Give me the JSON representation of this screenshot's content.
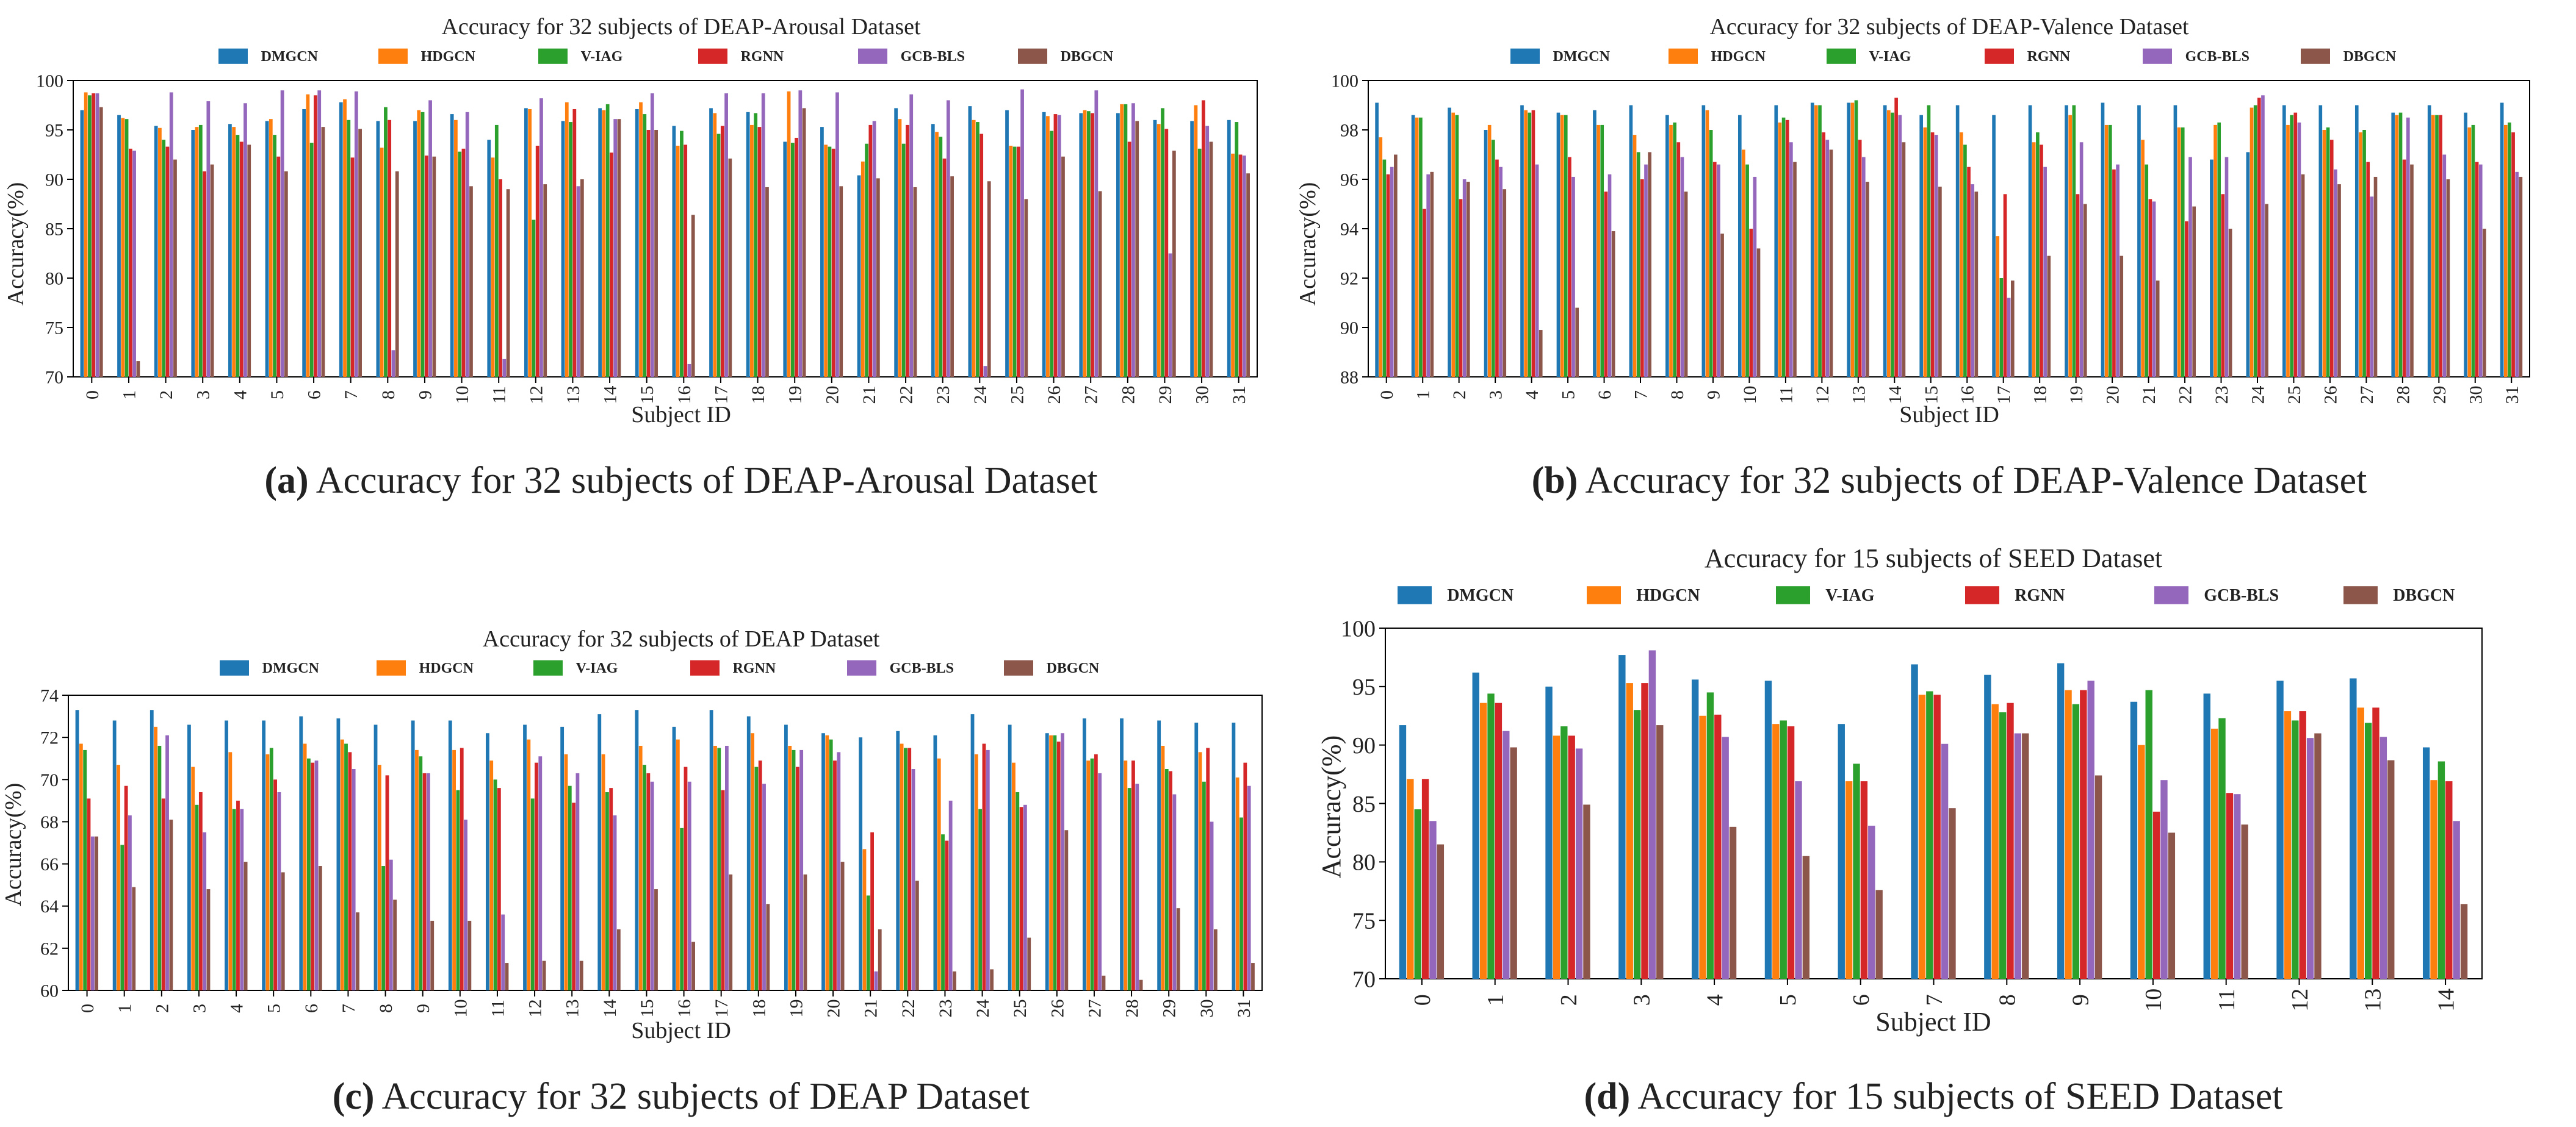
{
  "series_colors": [
    "#1f77b4",
    "#ff7f0e",
    "#2ca02c",
    "#d62728",
    "#9467bd",
    "#8c564b"
  ],
  "chart_data": [
    {
      "id": "a",
      "type": "bar",
      "title": "Accuracy for 32 subjects of DEAP-Arousal Dataset",
      "xlabel": "Subject ID",
      "ylabel": "Accuracy(%)",
      "ylim": [
        70,
        100
      ],
      "yticks": [
        70,
        75,
        80,
        85,
        90,
        95,
        100
      ],
      "categories": [
        "0",
        "1",
        "2",
        "3",
        "4",
        "5",
        "6",
        "7",
        "8",
        "9",
        "10",
        "11",
        "12",
        "13",
        "14",
        "15",
        "16",
        "17",
        "18",
        "19",
        "20",
        "21",
        "22",
        "23",
        "24",
        "25",
        "26",
        "27",
        "28",
        "29",
        "30",
        "31"
      ],
      "caption_label": "(a)",
      "caption_text": "Accuracy for 32 subjects of DEAP-Arousal Dataset",
      "series": [
        {
          "name": "DMGCN",
          "values": [
            97.0,
            96.5,
            95.4,
            95.0,
            95.6,
            95.9,
            97.1,
            97.8,
            95.9,
            95.9,
            96.6,
            94.0,
            97.2,
            95.9,
            97.2,
            97.1,
            95.4,
            97.2,
            96.8,
            93.8,
            95.3,
            90.4,
            97.2,
            95.6,
            97.4,
            97.0,
            96.8,
            96.7,
            96.7,
            96.0,
            95.9,
            96.0
          ]
        },
        {
          "name": "HDGCN",
          "values": [
            98.8,
            96.2,
            95.2,
            95.3,
            95.3,
            96.1,
            98.6,
            98.1,
            93.2,
            97.0,
            96.0,
            92.2,
            97.1,
            97.8,
            97.0,
            97.8,
            93.4,
            96.7,
            95.5,
            98.9,
            93.5,
            91.8,
            96.1,
            94.8,
            96.0,
            93.4,
            96.4,
            97.0,
            97.6,
            95.6,
            97.5,
            92.6
          ]
        },
        {
          "name": "V-IAG",
          "values": [
            98.5,
            96.1,
            94.0,
            95.5,
            94.5,
            94.5,
            93.7,
            96.0,
            97.3,
            96.8,
            92.8,
            95.5,
            85.9,
            95.8,
            97.6,
            96.6,
            94.9,
            94.6,
            96.7,
            93.7,
            93.3,
            93.6,
            93.6,
            94.3,
            95.8,
            93.3,
            94.9,
            96.9,
            97.6,
            97.2,
            93.1,
            95.8
          ]
        },
        {
          "name": "RGNN",
          "values": [
            98.7,
            93.1,
            93.3,
            90.8,
            93.8,
            92.3,
            98.5,
            92.2,
            96.0,
            92.4,
            93.1,
            90.0,
            93.4,
            97.1,
            92.7,
            95.0,
            93.5,
            95.4,
            95.3,
            94.2,
            93.1,
            95.5,
            95.5,
            92.1,
            94.6,
            93.3,
            96.6,
            96.7,
            93.8,
            95.1,
            98.0,
            92.5
          ]
        },
        {
          "name": "GCB-BLS",
          "values": [
            98.7,
            92.9,
            98.8,
            97.9,
            97.7,
            99.0,
            99.0,
            98.9,
            72.7,
            98.0,
            96.8,
            71.8,
            98.2,
            89.3,
            96.1,
            98.7,
            71.3,
            98.7,
            98.7,
            99.0,
            98.8,
            95.9,
            98.6,
            98.0,
            71.1,
            99.1,
            96.5,
            99.0,
            97.7,
            82.5,
            95.4,
            92.4
          ]
        },
        {
          "name": "DBGCN",
          "values": [
            97.3,
            71.6,
            92.0,
            91.5,
            93.5,
            90.8,
            95.3,
            95.1,
            90.8,
            92.3,
            89.3,
            89.0,
            89.5,
            90.0,
            96.1,
            95.0,
            86.4,
            92.1,
            89.2,
            97.2,
            89.3,
            90.1,
            89.2,
            90.3,
            89.8,
            88.0,
            92.3,
            88.8,
            95.9,
            92.9,
            93.8,
            90.6
          ]
        }
      ]
    },
    {
      "id": "b",
      "type": "bar",
      "title": "Accuracy for 32 subjects of DEAP-Valence Dataset",
      "xlabel": "Subject ID",
      "ylabel": "Accuracy(%)",
      "ylim": [
        88,
        100
      ],
      "yticks": [
        88,
        90,
        92,
        94,
        96,
        98,
        100
      ],
      "categories": [
        "0",
        "1",
        "2",
        "3",
        "4",
        "5",
        "6",
        "7",
        "8",
        "9",
        "10",
        "11",
        "12",
        "13",
        "14",
        "15",
        "16",
        "17",
        "18",
        "19",
        "20",
        "21",
        "22",
        "23",
        "24",
        "25",
        "26",
        "27",
        "28",
        "29",
        "30",
        "31"
      ],
      "caption_label": "(b)",
      "caption_text": "Accuracy for 32 subjects of DEAP-Valence Dataset",
      "series": [
        {
          "name": "DMGCN",
          "values": [
            99.1,
            98.6,
            98.9,
            98.0,
            99.0,
            98.7,
            98.8,
            99.0,
            98.6,
            99.0,
            98.6,
            99.0,
            99.1,
            99.1,
            99.0,
            98.6,
            99.0,
            98.6,
            99.0,
            99.0,
            99.1,
            99.0,
            99.0,
            96.8,
            97.1,
            99.0,
            99.0,
            99.0,
            98.7,
            99.0,
            98.7,
            99.1
          ]
        },
        {
          "name": "HDGCN",
          "values": [
            97.7,
            98.5,
            98.7,
            98.2,
            98.8,
            98.6,
            98.2,
            97.8,
            98.2,
            98.8,
            97.2,
            98.3,
            99.0,
            99.1,
            98.8,
            98.1,
            97.9,
            93.7,
            97.5,
            98.6,
            98.2,
            97.6,
            98.1,
            98.2,
            98.9,
            98.2,
            98.0,
            97.9,
            98.6,
            98.6,
            98.1,
            98.2
          ]
        },
        {
          "name": "V-IAG",
          "values": [
            96.8,
            98.5,
            98.6,
            97.6,
            98.7,
            98.6,
            98.2,
            97.1,
            98.3,
            98.0,
            96.6,
            98.5,
            99.0,
            99.2,
            98.7,
            99.0,
            97.4,
            92.0,
            97.9,
            99.0,
            98.2,
            96.6,
            98.1,
            98.3,
            99.0,
            98.6,
            98.1,
            98.0,
            98.7,
            98.6,
            98.2,
            98.3
          ]
        },
        {
          "name": "RGNN",
          "values": [
            96.2,
            94.8,
            95.2,
            96.8,
            98.8,
            96.9,
            95.5,
            96.0,
            97.5,
            96.7,
            94.0,
            98.4,
            97.9,
            97.6,
            99.3,
            97.9,
            96.5,
            95.4,
            97.4,
            95.4,
            96.4,
            95.2,
            94.3,
            95.4,
            99.3,
            98.7,
            97.6,
            96.7,
            96.8,
            98.6,
            96.7,
            97.9
          ]
        },
        {
          "name": "GCB-BLS",
          "values": [
            96.5,
            96.2,
            96.0,
            96.5,
            96.6,
            96.1,
            96.2,
            96.6,
            96.9,
            96.6,
            96.1,
            97.5,
            97.6,
            96.9,
            98.6,
            97.8,
            95.8,
            91.2,
            96.5,
            97.5,
            96.6,
            95.1,
            96.9,
            96.9,
            99.4,
            98.3,
            96.4,
            95.3,
            98.5,
            97.0,
            96.6,
            96.3
          ]
        },
        {
          "name": "DBGCN",
          "values": [
            97.0,
            96.3,
            95.9,
            95.6,
            89.9,
            90.8,
            93.9,
            97.1,
            95.5,
            93.8,
            93.2,
            96.7,
            97.2,
            95.9,
            97.5,
            95.7,
            95.5,
            91.9,
            92.9,
            95.0,
            92.9,
            91.9,
            94.9,
            94.0,
            95.0,
            96.2,
            95.8,
            96.1,
            96.6,
            96.0,
            94.0,
            96.1
          ]
        }
      ]
    },
    {
      "id": "c",
      "type": "bar",
      "title": "Accuracy for 32 subjects of DEAP Dataset",
      "xlabel": "Subject ID",
      "ylabel": "Accuracy(%)",
      "ylim": [
        60,
        74
      ],
      "yticks": [
        60,
        62,
        64,
        66,
        68,
        70,
        72,
        74
      ],
      "categories": [
        "0",
        "1",
        "2",
        "3",
        "4",
        "5",
        "6",
        "7",
        "8",
        "9",
        "10",
        "11",
        "12",
        "13",
        "14",
        "15",
        "16",
        "17",
        "18",
        "19",
        "20",
        "21",
        "22",
        "23",
        "24",
        "25",
        "26",
        "27",
        "28",
        "29",
        "30",
        "31"
      ],
      "caption_label": "(c)",
      "caption_text": "Accuracy for 32 subjects of DEAP Dataset",
      "series": [
        {
          "name": "DMGCN",
          "values": [
            73.3,
            72.8,
            73.3,
            72.6,
            72.8,
            72.8,
            73.0,
            72.9,
            72.6,
            72.8,
            72.8,
            72.2,
            72.6,
            72.5,
            73.1,
            73.3,
            72.5,
            73.3,
            73.0,
            72.6,
            72.2,
            72.0,
            72.3,
            72.1,
            73.1,
            72.6,
            72.2,
            72.9,
            72.9,
            72.8,
            72.7,
            72.7
          ]
        },
        {
          "name": "HDGCN",
          "values": [
            71.7,
            70.7,
            72.5,
            70.6,
            71.3,
            71.2,
            71.7,
            71.9,
            70.7,
            71.4,
            71.4,
            70.9,
            71.9,
            71.2,
            71.2,
            71.6,
            71.9,
            71.6,
            72.2,
            71.6,
            72.1,
            66.7,
            71.7,
            71.0,
            71.2,
            70.8,
            72.1,
            70.9,
            70.9,
            71.6,
            71.3,
            70.1
          ]
        },
        {
          "name": "V-IAG",
          "values": [
            71.4,
            66.9,
            71.6,
            68.8,
            68.6,
            71.5,
            71.0,
            71.7,
            65.9,
            71.1,
            69.5,
            70.0,
            69.1,
            69.7,
            69.4,
            70.7,
            67.7,
            71.5,
            70.6,
            71.4,
            71.9,
            64.5,
            71.5,
            67.4,
            68.6,
            69.4,
            72.1,
            71.0,
            69.6,
            70.5,
            69.9,
            68.2
          ]
        },
        {
          "name": "RGNN",
          "values": [
            69.1,
            69.7,
            69.1,
            69.4,
            69.0,
            70.0,
            70.8,
            71.3,
            70.2,
            70.3,
            71.5,
            69.6,
            70.8,
            68.9,
            69.6,
            70.3,
            70.6,
            69.5,
            70.9,
            70.6,
            70.9,
            67.5,
            71.5,
            67.1,
            71.7,
            68.7,
            71.8,
            71.2,
            70.9,
            70.4,
            71.5,
            70.8
          ]
        },
        {
          "name": "GCB-BLS",
          "values": [
            67.3,
            68.3,
            72.1,
            67.5,
            68.6,
            69.4,
            70.9,
            70.5,
            66.2,
            70.3,
            68.1,
            63.6,
            71.1,
            70.3,
            68.3,
            69.9,
            69.9,
            71.6,
            69.8,
            71.4,
            71.3,
            60.9,
            70.5,
            69.0,
            71.4,
            68.8,
            72.2,
            70.3,
            69.8,
            69.3,
            68.0,
            69.7
          ]
        },
        {
          "name": "DBGCN",
          "values": [
            67.3,
            64.9,
            68.1,
            64.8,
            66.1,
            65.6,
            65.9,
            63.7,
            64.3,
            63.3,
            63.3,
            61.3,
            61.4,
            61.4,
            62.9,
            64.8,
            62.3,
            65.5,
            64.1,
            65.5,
            66.1,
            62.9,
            65.2,
            60.9,
            61.0,
            62.5,
            67.6,
            60.7,
            60.5,
            63.9,
            62.9,
            61.3
          ]
        }
      ]
    },
    {
      "id": "d",
      "type": "bar",
      "title": "Accuracy for 15 subjects of SEED Dataset",
      "xlabel": "Subject ID",
      "ylabel": "Accuracy(%)",
      "ylim": [
        70,
        100
      ],
      "yticks": [
        70,
        75,
        80,
        85,
        90,
        95,
        100
      ],
      "categories": [
        "0",
        "1",
        "2",
        "3",
        "4",
        "5",
        "6",
        "7",
        "8",
        "9",
        "10",
        "11",
        "12",
        "13",
        "14"
      ],
      "caption_label": "(d)",
      "caption_text": "Accuracy for 15 subjects of SEED Dataset",
      "series": [
        {
          "name": "DMGCN",
          "values": [
            91.7,
            96.2,
            95.0,
            97.7,
            95.6,
            95.5,
            91.8,
            96.9,
            96.0,
            97.0,
            93.7,
            94.4,
            95.5,
            95.7,
            89.8
          ]
        },
        {
          "name": "HDGCN",
          "values": [
            87.1,
            93.6,
            90.8,
            95.3,
            92.5,
            91.8,
            86.9,
            94.3,
            93.5,
            94.7,
            90.0,
            91.4,
            92.9,
            93.2,
            87.0
          ]
        },
        {
          "name": "V-IAG",
          "values": [
            84.5,
            94.4,
            91.6,
            93.0,
            94.5,
            92.1,
            88.4,
            94.6,
            92.8,
            93.5,
            94.7,
            92.3,
            92.1,
            91.9,
            88.6
          ]
        },
        {
          "name": "RGNN",
          "values": [
            87.1,
            93.6,
            90.8,
            95.3,
            92.6,
            91.6,
            86.9,
            94.3,
            93.6,
            94.7,
            84.3,
            85.9,
            92.9,
            93.2,
            86.9
          ]
        },
        {
          "name": "GCB-BLS",
          "values": [
            83.5,
            91.2,
            89.7,
            98.1,
            90.7,
            86.9,
            83.1,
            90.1,
            91.0,
            95.5,
            87.0,
            85.8,
            90.6,
            90.7,
            83.5
          ]
        },
        {
          "name": "DBGCN",
          "values": [
            81.5,
            89.8,
            84.9,
            91.7,
            83.0,
            80.5,
            77.6,
            84.6,
            91.0,
            87.4,
            82.5,
            83.2,
            91.0,
            88.7,
            76.4
          ]
        }
      ]
    }
  ]
}
